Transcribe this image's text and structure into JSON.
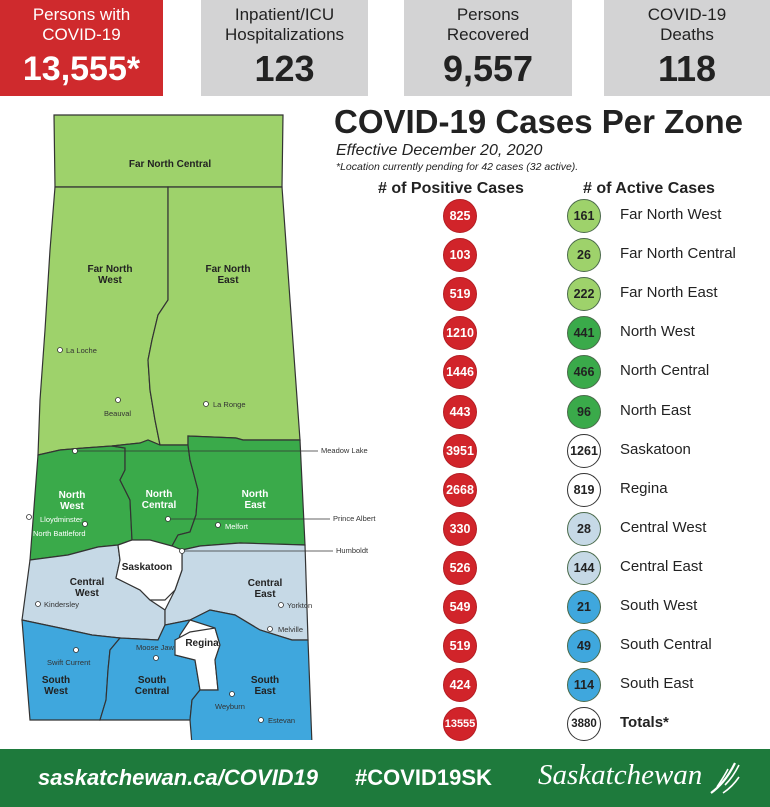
{
  "stats": [
    {
      "label": "Persons with COVID-19",
      "value": "13,555*"
    },
    {
      "label": "Inpatient/ICU Hospitalizations",
      "value": "123"
    },
    {
      "label": "Persons Recovered",
      "value": "9,557"
    },
    {
      "label": "COVID-19 Deaths",
      "value": "118"
    }
  ],
  "title": "COVID-19 Cases Per Zone",
  "subtitle": "Effective December 20, 2020",
  "note": "*Location currently pending for 42 cases (32 active).",
  "columns": {
    "positive": "# of Positive Cases",
    "active": "# of Active Cases"
  },
  "zones": [
    {
      "name": "Far North West",
      "positive": "825",
      "active": "161",
      "color": "#9ed26b"
    },
    {
      "name": "Far North Central",
      "positive": "103",
      "active": "26",
      "color": "#9ed26b"
    },
    {
      "name": "Far North East",
      "positive": "519",
      "active": "222",
      "color": "#9ed26b"
    },
    {
      "name": "North West",
      "positive": "1210",
      "active": "441",
      "color": "#3aaa4a"
    },
    {
      "name": "North Central",
      "positive": "1446",
      "active": "466",
      "color": "#3aaa4a"
    },
    {
      "name": "North East",
      "positive": "443",
      "active": "96",
      "color": "#3aaa4a"
    },
    {
      "name": "Saskatoon",
      "positive": "3951",
      "active": "1261",
      "color": "#ffffff"
    },
    {
      "name": "Regina",
      "positive": "2668",
      "active": "819",
      "color": "#ffffff"
    },
    {
      "name": "Central West",
      "positive": "330",
      "active": "28",
      "color": "#c6d9e6"
    },
    {
      "name": "Central East",
      "positive": "526",
      "active": "144",
      "color": "#c6d9e6"
    },
    {
      "name": "South West",
      "positive": "549",
      "active": "21",
      "color": "#3fa7dd"
    },
    {
      "name": "South Central",
      "positive": "519",
      "active": "49",
      "color": "#3fa7dd"
    },
    {
      "name": "South East",
      "positive": "424",
      "active": "114",
      "color": "#3fa7dd"
    }
  ],
  "totals": {
    "name": "Totals*",
    "positive": "13555",
    "active": "3880"
  },
  "map": {
    "zone_labels": {
      "far_north_central": "Far North Central",
      "far_north_west_1": "Far North",
      "far_north_west_2": "West",
      "far_north_east_1": "Far North",
      "far_north_east_2": "East",
      "north_west_1": "North",
      "north_west_2": "West",
      "north_central_1": "North",
      "north_central_2": "Central",
      "north_east_1": "North",
      "north_east_2": "East",
      "saskatoon": "Saskatoon",
      "central_west_1": "Central",
      "central_west_2": "West",
      "central_east_1": "Central",
      "central_east_2": "East",
      "regina": "Regina",
      "south_west_1": "South",
      "south_west_2": "West",
      "south_central_1": "South",
      "south_central_2": "Central",
      "south_east_1": "South",
      "south_east_2": "East"
    },
    "cities": {
      "la_loche": "La Loche",
      "beauval": "Beauval",
      "la_ronge": "La Ronge",
      "meadow_lake": "Meadow Lake",
      "lloydminster": "Lloydminster",
      "north_battleford": "North Battleford",
      "prince_albert": "Prince Albert",
      "melfort": "Melfort",
      "humboldt": "Humboldt",
      "kindersley": "Kindersley",
      "yorkton": "Yorkton",
      "melville": "Melville",
      "moose_jaw": "Moose Jaw",
      "swift_current": "Swift Current",
      "weyburn": "Weyburn",
      "estevan": "Estevan"
    }
  },
  "footer": {
    "url": "saskatchewan.ca/COVID19",
    "hashtag": "#COVID19SK",
    "brand": "Saskatchewan"
  }
}
